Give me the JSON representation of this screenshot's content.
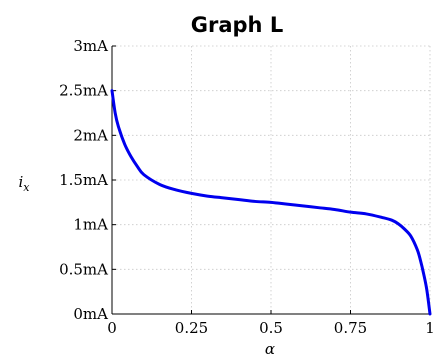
{
  "chart_data": {
    "type": "line",
    "title": "Graph L",
    "xlabel": "α",
    "ylabel": "i_x",
    "ylabel_main": "i",
    "ylabel_sub": "x",
    "xlim": [
      0,
      1
    ],
    "ylim": [
      0,
      3
    ],
    "x_ticks": [
      0,
      0.25,
      0.5,
      0.75,
      1
    ],
    "x_tick_labels": [
      "0",
      "0.25",
      "0.5",
      "0.75",
      "1"
    ],
    "y_ticks": [
      0,
      0.5,
      1,
      1.5,
      2,
      2.5,
      3
    ],
    "y_tick_labels": [
      "0mA",
      "0.5mA",
      "1mA",
      "1.5mA",
      "2mA",
      "2.5mA",
      "3mA"
    ],
    "grid": true,
    "series": [
      {
        "color": "#0000ee",
        "x": [
          0,
          0.01,
          0.02,
          0.04,
          0.06,
          0.08,
          0.1,
          0.15,
          0.2,
          0.25,
          0.3,
          0.35,
          0.4,
          0.45,
          0.5,
          0.55,
          0.6,
          0.65,
          0.7,
          0.75,
          0.8,
          0.85,
          0.88,
          0.9,
          0.92,
          0.94,
          0.96,
          0.97,
          0.98,
          0.99,
          1
        ],
        "values": [
          2.5,
          2.25,
          2.1,
          1.9,
          1.76,
          1.65,
          1.56,
          1.45,
          1.39,
          1.35,
          1.32,
          1.3,
          1.28,
          1.26,
          1.25,
          1.23,
          1.21,
          1.19,
          1.17,
          1.14,
          1.12,
          1.08,
          1.05,
          1.01,
          0.95,
          0.87,
          0.72,
          0.6,
          0.45,
          0.27,
          0
        ]
      }
    ]
  }
}
